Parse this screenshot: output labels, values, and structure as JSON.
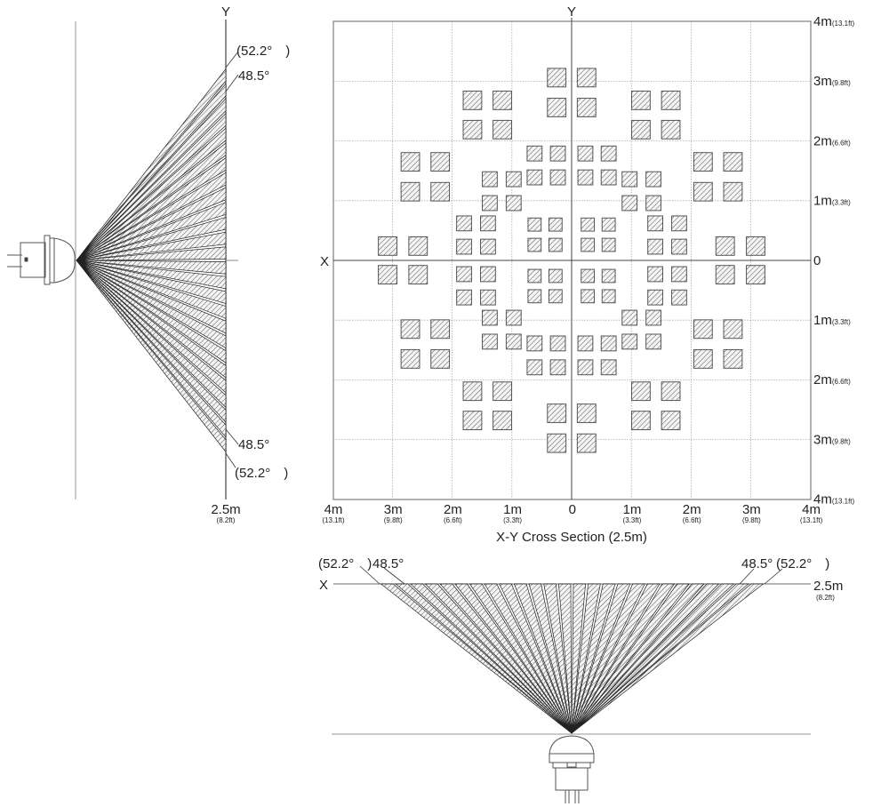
{
  "side_view": {
    "axis_label": "Y",
    "upper_outer_angle": "(52.2°　)",
    "upper_inner_angle": "48.5°",
    "lower_inner_angle": "48.5°",
    "lower_outer_angle": "(52.2°　)",
    "distance": "2.5m",
    "distance_ft": "(8.2ft)"
  },
  "cross_section": {
    "title": "X-Y Cross Section (2.5m)",
    "x_axis_label": "X",
    "y_axis_label": "Y",
    "right_ticks": [
      {
        "m": "4m",
        "ft": "(13.1ft)"
      },
      {
        "m": "3m",
        "ft": "(9.8ft)"
      },
      {
        "m": "2m",
        "ft": "(6.6ft)"
      },
      {
        "m": "1m",
        "ft": "(3.3ft)"
      },
      {
        "m": "0",
        "ft": ""
      },
      {
        "m": "1m",
        "ft": "(3.3ft)"
      },
      {
        "m": "2m",
        "ft": "(6.6ft)"
      },
      {
        "m": "3m",
        "ft": "(9.8ft)"
      },
      {
        "m": "4m",
        "ft": "(13.1ft)"
      }
    ],
    "bottom_ticks": [
      {
        "m": "4m",
        "ft": "(13.1ft)"
      },
      {
        "m": "3m",
        "ft": "(9.8ft)"
      },
      {
        "m": "2m",
        "ft": "(6.6ft)"
      },
      {
        "m": "1m",
        "ft": "(3.3ft)"
      },
      {
        "m": "0",
        "ft": ""
      },
      {
        "m": "1m",
        "ft": "(3.3ft)"
      },
      {
        "m": "2m",
        "ft": "(6.6ft)"
      },
      {
        "m": "3m",
        "ft": "(9.8ft)"
      },
      {
        "m": "4m",
        "ft": "(13.1ft)"
      }
    ]
  },
  "front_view": {
    "axis_label": "X",
    "left_outer_angle": "(52.2°　)",
    "left_inner_angle": "48.5°",
    "right_inner_angle": "48.5°",
    "right_outer_angle": "(52.2°　)",
    "distance": "2.5m",
    "distance_ft": "(8.2ft)"
  },
  "colors": {
    "line": "#222222",
    "grid": "#999999",
    "zone_fill": "#e6e6e6",
    "zone_stroke": "#555555"
  }
}
